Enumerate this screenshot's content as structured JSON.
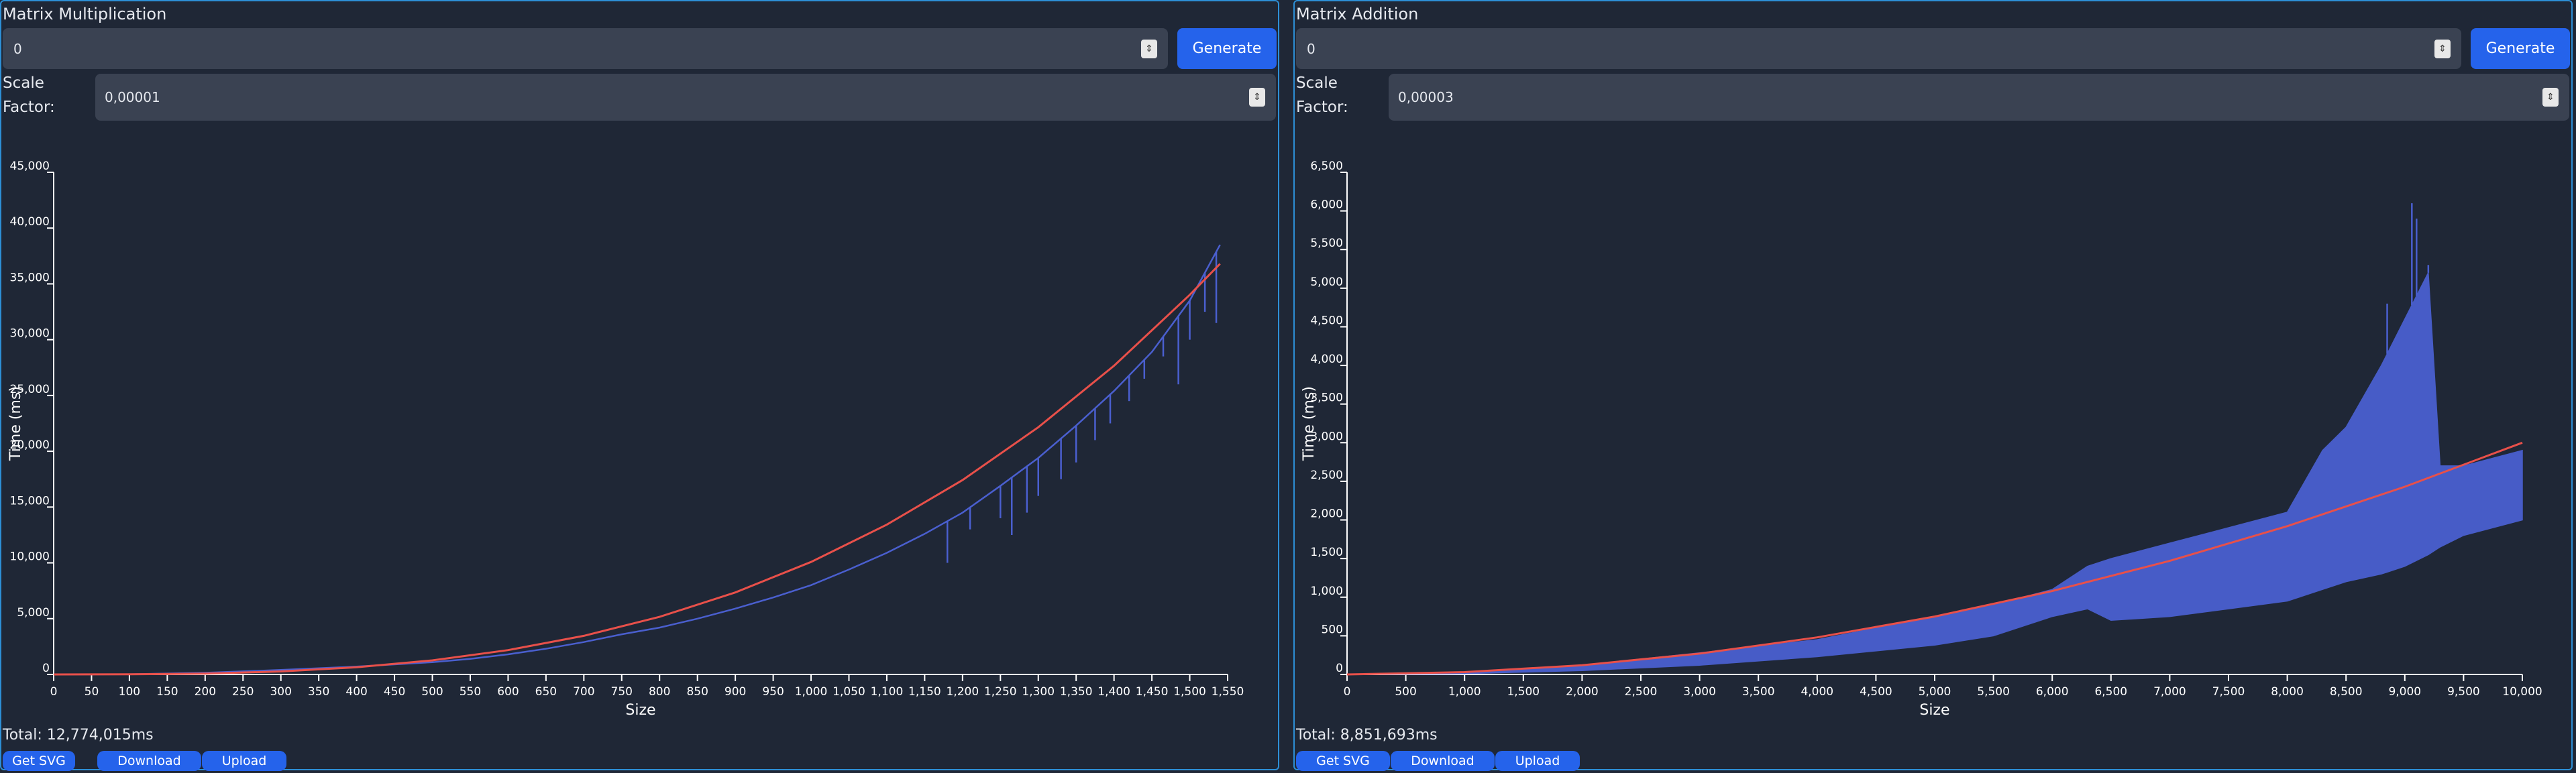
{
  "panels": [
    {
      "title": "Matrix Multiplication",
      "input_value": "0",
      "generate_label": "Generate",
      "scale_label": "Scale Factor:",
      "scale_value": "0,00001",
      "total": "Total: 12,774,015ms",
      "buttons": [
        "Get SVG",
        "Download",
        "Upload"
      ]
    },
    {
      "title": "Matrix Addition",
      "input_value": "0",
      "generate_label": "Generate",
      "scale_label": "Scale Factor:",
      "scale_value": "0,00003",
      "total": "Total: 8,851,693ms",
      "buttons": [
        "Get SVG",
        "Download",
        "Upload"
      ]
    }
  ],
  "chart_data": [
    {
      "type": "line",
      "xlabel": "Size",
      "ylabel": "Time (ms)",
      "xlim": [
        0,
        1550
      ],
      "ylim": [
        0,
        45000
      ],
      "x_ticks": [
        0,
        50,
        100,
        150,
        200,
        250,
        300,
        350,
        400,
        450,
        500,
        550,
        600,
        650,
        700,
        750,
        800,
        850,
        900,
        950,
        1000,
        1050,
        1100,
        1150,
        1200,
        1250,
        1300,
        1350,
        1400,
        1450,
        1500,
        1550
      ],
      "x_tick_labels": [
        "0",
        "50",
        "100",
        "150",
        "200",
        "250",
        "300",
        "350",
        "400",
        "450",
        "500",
        "550",
        "600",
        "650",
        "700",
        "750",
        "800",
        "850",
        "900",
        "950",
        "1,000",
        "1,050",
        "1,100",
        "1,150",
        "1,200",
        "1,250",
        "1,300",
        "1,350",
        "1,400",
        "1,450",
        "1,500",
        "1,550"
      ],
      "y_ticks": [
        0,
        5000,
        10000,
        15000,
        20000,
        25000,
        30000,
        35000,
        40000,
        45000
      ],
      "y_tick_labels": [
        "0",
        "5,000",
        "10,000",
        "15,000",
        "20,000",
        "25,000",
        "30,000",
        "35,000",
        "40,000",
        "45,000"
      ],
      "series": [
        {
          "kind": "measured",
          "color": "#4a5fcf",
          "x": [
            0,
            100,
            200,
            300,
            400,
            450,
            500,
            550,
            600,
            650,
            700,
            750,
            800,
            850,
            900,
            950,
            1000,
            1050,
            1100,
            1150,
            1200,
            1250,
            1300,
            1350,
            1400,
            1450,
            1500,
            1540
          ],
          "y": [
            0,
            20,
            150,
            400,
            700,
            900,
            1100,
            1400,
            1800,
            2300,
            2900,
            3600,
            4200,
            5000,
            5900,
            6900,
            8000,
            9400,
            10900,
            12600,
            14500,
            16900,
            19400,
            22300,
            25400,
            28900,
            33500,
            38500
          ]
        },
        {
          "kind": "fit",
          "color": "#e8504a",
          "x": [
            0,
            100,
            200,
            300,
            400,
            500,
            600,
            700,
            800,
            900,
            1000,
            1100,
            1200,
            1300,
            1400,
            1500,
            1540
          ],
          "y": [
            0,
            10,
            81,
            270,
            645,
            1260,
            2180,
            3460,
            5160,
            7350,
            10080,
            13420,
            17420,
            22150,
            27660,
            34020,
            36800
          ]
        }
      ],
      "spikes": [
        {
          "x": 1180,
          "y": 10000
        },
        {
          "x": 1210,
          "y": 13000
        },
        {
          "x": 1250,
          "y": 14000
        },
        {
          "x": 1265,
          "y": 12500
        },
        {
          "x": 1285,
          "y": 14500
        },
        {
          "x": 1300,
          "y": 16000
        },
        {
          "x": 1330,
          "y": 17500
        },
        {
          "x": 1350,
          "y": 19000
        },
        {
          "x": 1375,
          "y": 21000
        },
        {
          "x": 1395,
          "y": 22500
        },
        {
          "x": 1420,
          "y": 24500
        },
        {
          "x": 1440,
          "y": 26500
        },
        {
          "x": 1465,
          "y": 28500
        },
        {
          "x": 1485,
          "y": 26000
        },
        {
          "x": 1500,
          "y": 30000
        },
        {
          "x": 1520,
          "y": 32500
        },
        {
          "x": 1535,
          "y": 31500
        }
      ]
    },
    {
      "type": "line",
      "xlabel": "Size",
      "ylabel": "Time (ms)",
      "xlim": [
        0,
        10000
      ],
      "ylim": [
        0,
        6500
      ],
      "x_ticks": [
        0,
        500,
        1000,
        1500,
        2000,
        2500,
        3000,
        3500,
        4000,
        4500,
        5000,
        5500,
        6000,
        6500,
        7000,
        7500,
        8000,
        8500,
        9000,
        9500,
        10000
      ],
      "x_tick_labels": [
        "0",
        "500",
        "1,000",
        "1,500",
        "2,000",
        "2,500",
        "3,000",
        "3,500",
        "4,000",
        "4,500",
        "5,000",
        "5,500",
        "6,000",
        "6,500",
        "7,000",
        "7,500",
        "8,000",
        "8,500",
        "9,000",
        "9,500",
        "10,000"
      ],
      "y_ticks": [
        0,
        500,
        1000,
        1500,
        2000,
        2500,
        3000,
        3500,
        4000,
        4500,
        5000,
        5500,
        6000,
        6500
      ],
      "y_tick_labels": [
        "0",
        "500",
        "1,000",
        "1,500",
        "2,000",
        "2,500",
        "3,000",
        "3,500",
        "4,000",
        "4,500",
        "5,000",
        "5,500",
        "6,000",
        "6,500"
      ],
      "series": [
        {
          "kind": "measured-upper",
          "color": "#4a5fcf",
          "x": [
            0,
            1000,
            2000,
            3000,
            4000,
            5000,
            5500,
            6000,
            6300,
            6500,
            7000,
            7500,
            8000,
            8300,
            8500,
            8800,
            9000,
            9200,
            9300,
            9500,
            10000
          ],
          "y": [
            0,
            30,
            120,
            280,
            450,
            750,
            900,
            1100,
            1400,
            1500,
            1700,
            1900,
            2100,
            2900,
            3200,
            4000,
            4600,
            5200,
            2700,
            2700,
            2900
          ]
        },
        {
          "kind": "measured-lower",
          "color": "#4a5fcf",
          "x": [
            0,
            1000,
            2000,
            3000,
            4000,
            5000,
            5500,
            6000,
            6300,
            6500,
            7000,
            7500,
            8000,
            8300,
            8500,
            8800,
            9000,
            9200,
            9300,
            9500,
            10000
          ],
          "y": [
            0,
            10,
            50,
            120,
            230,
            380,
            500,
            750,
            850,
            700,
            750,
            850,
            950,
            1100,
            1200,
            1300,
            1400,
            1550,
            1650,
            1800,
            2000
          ]
        },
        {
          "kind": "fit",
          "color": "#e8504a",
          "x": [
            0,
            1000,
            2000,
            3000,
            4000,
            5000,
            6000,
            7000,
            8000,
            9000,
            10000
          ],
          "y": [
            0,
            30,
            120,
            270,
            480,
            750,
            1080,
            1470,
            1920,
            2430,
            3000
          ]
        }
      ],
      "spikes": [
        {
          "x": 9060,
          "y": 6100
        },
        {
          "x": 9100,
          "y": 5900
        },
        {
          "x": 8850,
          "y": 4800
        },
        {
          "x": 9200,
          "y": 5300
        }
      ]
    }
  ]
}
